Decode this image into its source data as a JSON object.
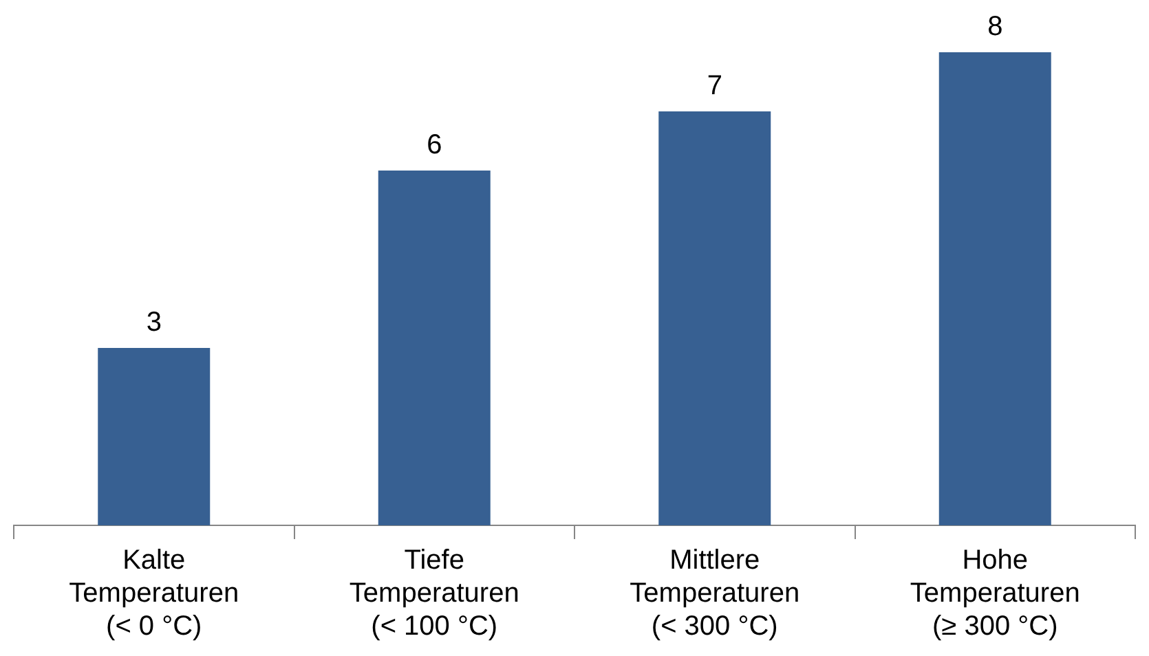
{
  "chart_data": {
    "type": "bar",
    "categories": [
      "Kalte\nTemperaturen\n(< 0 °C)",
      "Tiefe\nTemperaturen\n(< 100 °C)",
      "Mittlere\nTemperaturen\n(< 300 °C)",
      "Hohe\nTemperaturen\n(≥ 300 °C)"
    ],
    "values": [
      3,
      6,
      7,
      8
    ],
    "color": "#376092",
    "ylim": [
      0,
      8
    ],
    "data_labels": true,
    "grid": false,
    "legend": false
  }
}
